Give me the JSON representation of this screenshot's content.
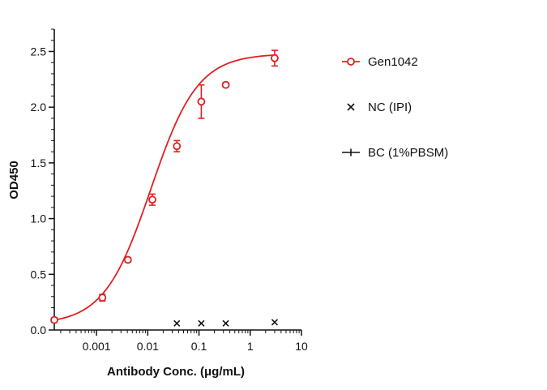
{
  "chart_data": {
    "type": "scatter",
    "xlabel": "Antibody Conc. (μg/mL)",
    "ylabel": "OD450",
    "x_scale": "log",
    "xlim": [
      0.00015,
      10
    ],
    "ylim": [
      0,
      2.7
    ],
    "x_ticks": [
      {
        "value": 0.001,
        "label": "0.001"
      },
      {
        "value": 0.01,
        "label": "0.01"
      },
      {
        "value": 0.1,
        "label": "0.1"
      },
      {
        "value": 1,
        "label": "1"
      },
      {
        "value": 10,
        "label": "10"
      }
    ],
    "y_ticks": [
      {
        "value": 0.0,
        "label": "0.0"
      },
      {
        "value": 0.5,
        "label": "0.5"
      },
      {
        "value": 1.0,
        "label": "1.0"
      },
      {
        "value": 1.5,
        "label": "1.5"
      },
      {
        "value": 2.0,
        "label": "2.0"
      },
      {
        "value": 2.5,
        "label": "2.5"
      }
    ],
    "grid": false,
    "legend_position": "right",
    "series": [
      {
        "name": "Gen1042",
        "color": "#e02020",
        "marker": "circle",
        "fit": {
          "bottom": 0.05,
          "top": 2.48,
          "ec50": 0.0115,
          "hill": 0.95
        },
        "points": [
          {
            "x": 0.00015,
            "y": 0.09,
            "err": 0.02
          },
          {
            "x": 0.0013,
            "y": 0.29,
            "err": 0.03
          },
          {
            "x": 0.0041,
            "y": 0.63,
            "err": 0.02
          },
          {
            "x": 0.0123,
            "y": 1.17,
            "err": 0.05
          },
          {
            "x": 0.037,
            "y": 1.65,
            "err": 0.05
          },
          {
            "x": 0.111,
            "y": 2.05,
            "err": 0.15
          },
          {
            "x": 0.333,
            "y": 2.2,
            "err": 0.02
          },
          {
            "x": 3.0,
            "y": 2.44,
            "err": 0.07
          }
        ]
      },
      {
        "name": "NC (IPI)",
        "color": "#111111",
        "marker": "x",
        "points": [
          {
            "x": 0.037,
            "y": 0.06
          },
          {
            "x": 0.111,
            "y": 0.06
          },
          {
            "x": 0.333,
            "y": 0.06
          },
          {
            "x": 3.0,
            "y": 0.07
          }
        ]
      },
      {
        "name": "BC (1%PBSM)",
        "color": "#111111",
        "marker": "plus",
        "points": []
      }
    ]
  }
}
